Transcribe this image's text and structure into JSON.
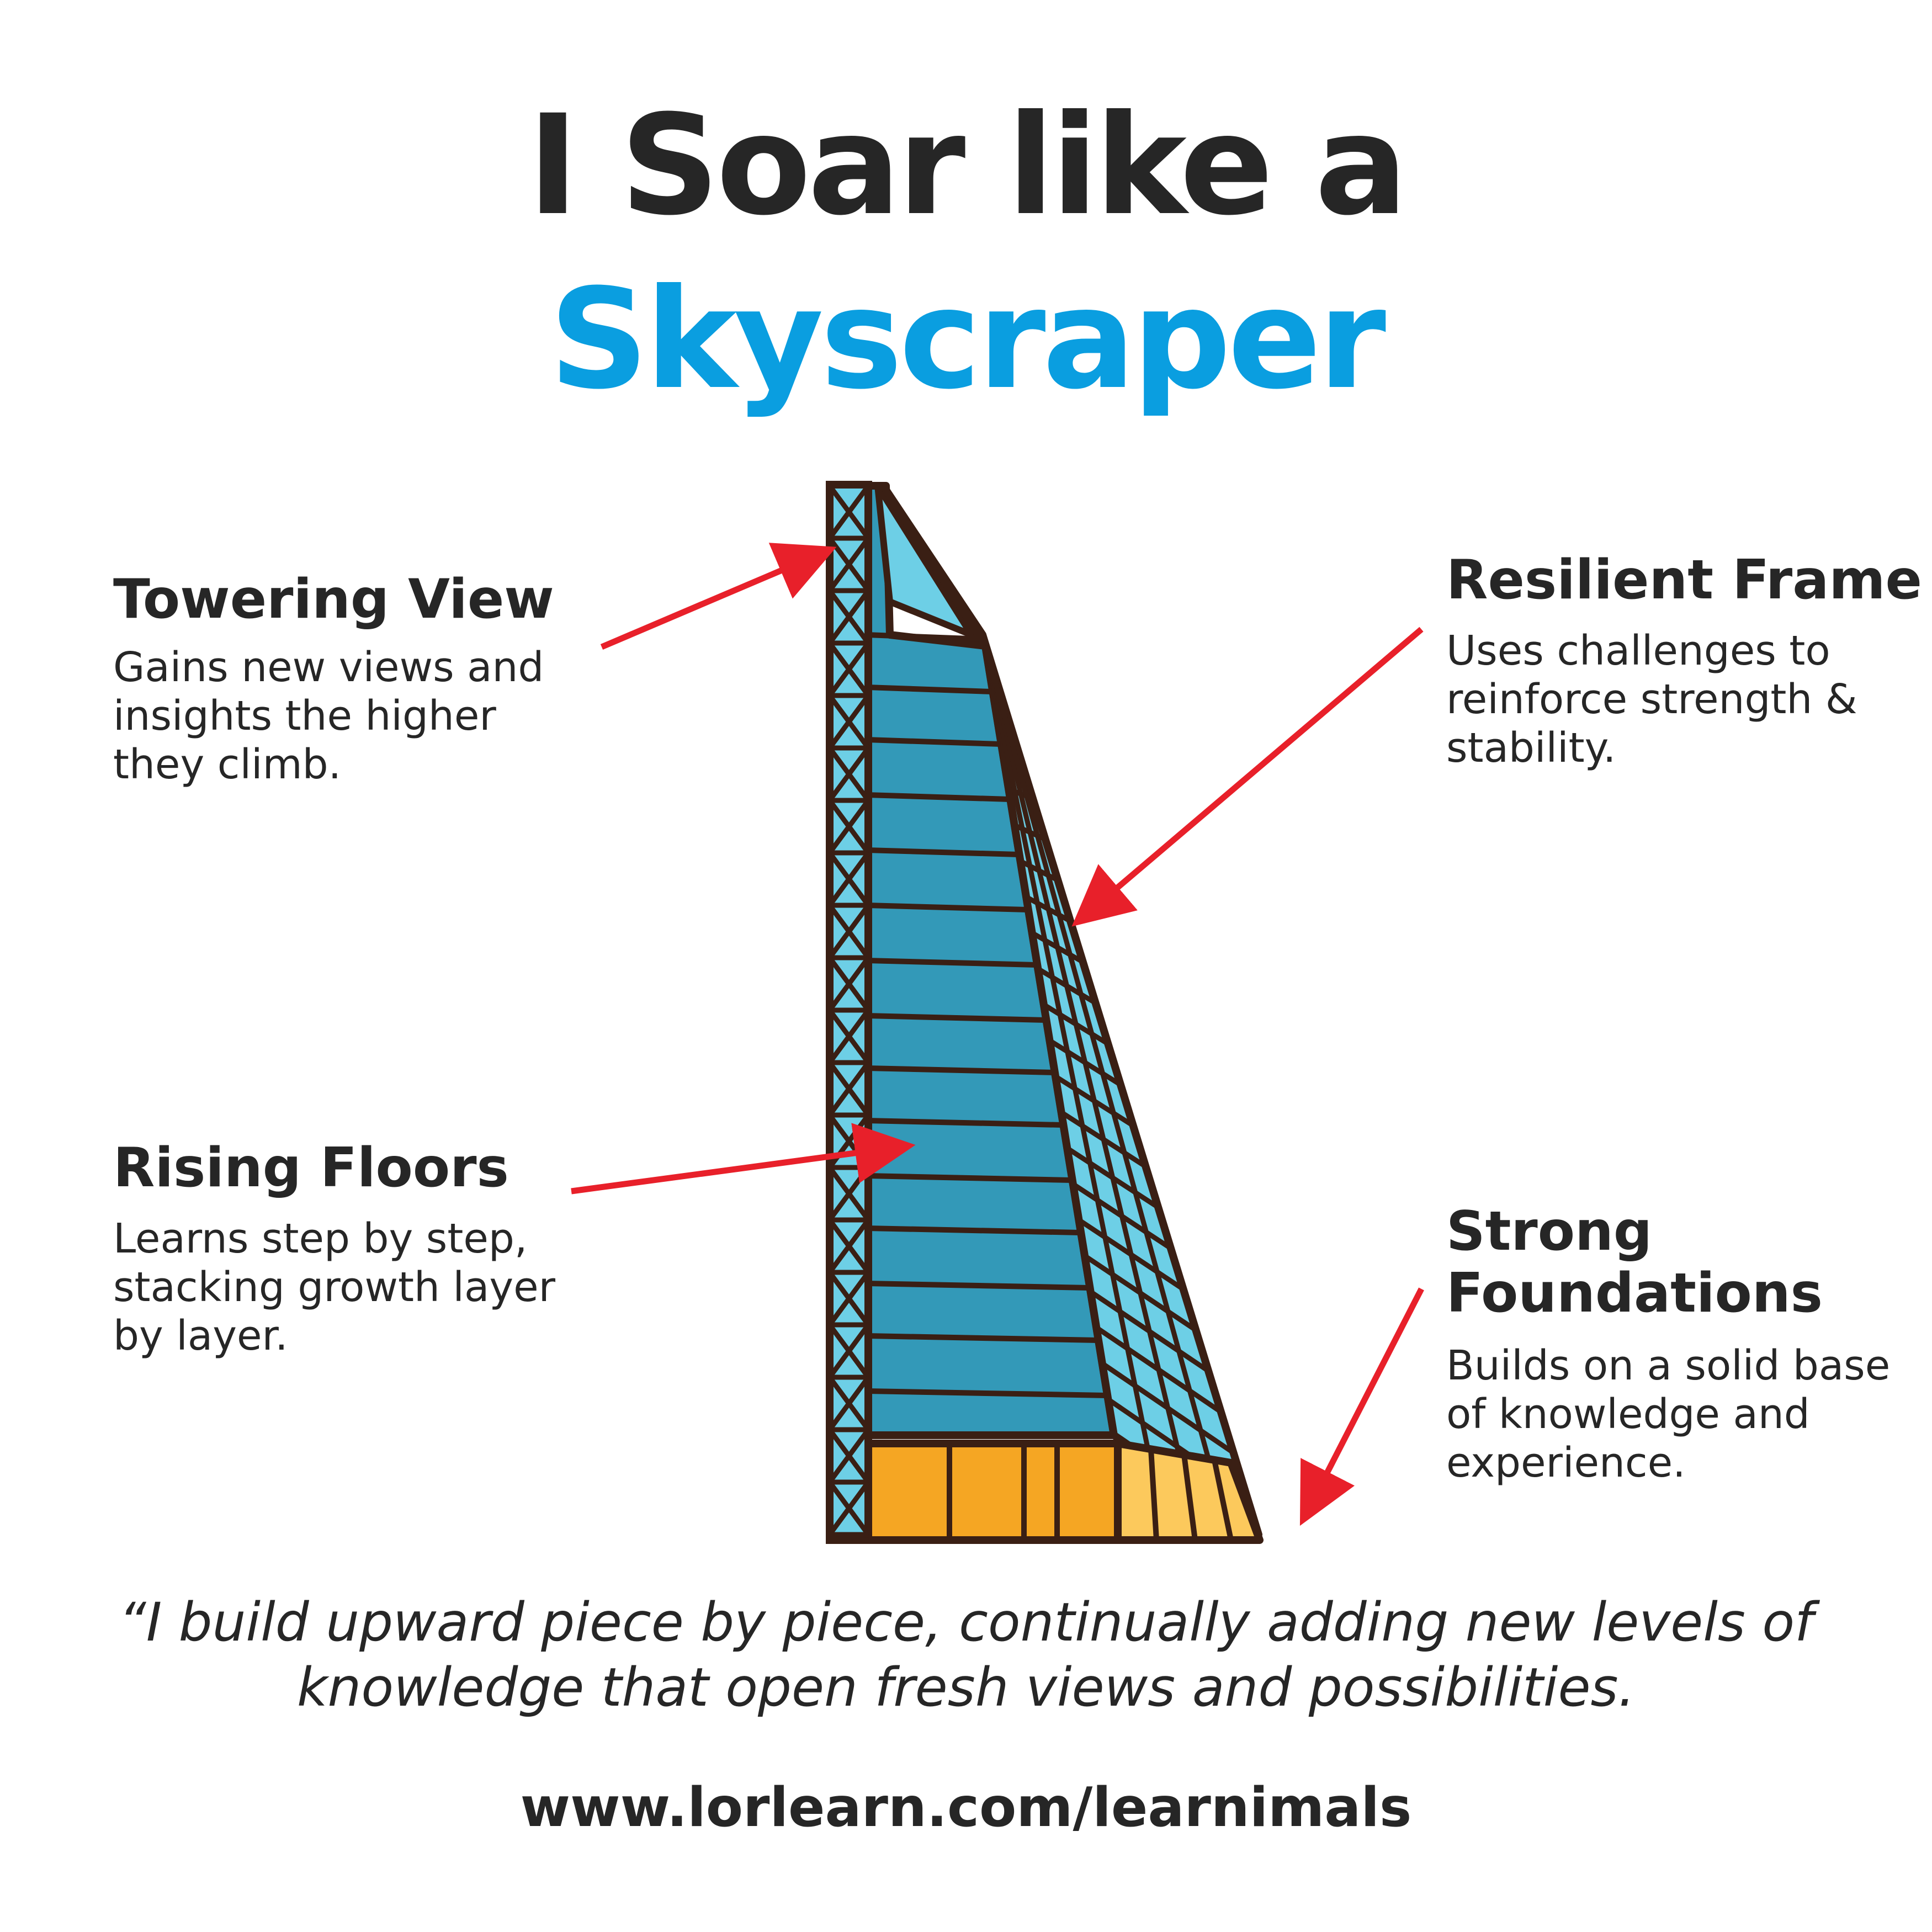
{
  "header": {
    "title_line1": "I Soar like a",
    "title_line2": "Skyscraper",
    "accent_color": "#0a9ee0"
  },
  "labels": {
    "towering_view": {
      "title": "Towering View",
      "body": "Gains new views and insights the higher they climb."
    },
    "resilient_frame": {
      "title": "Resilient Frame",
      "body": "Uses challenges to reinforce strength & stability."
    },
    "rising_floors": {
      "title": "Rising Floors",
      "body": "Learns step by step, stacking growth layer by layer."
    },
    "strong_foundations": {
      "title": "Strong Foundations",
      "body": "Builds on a solid base of knowledge and experience."
    }
  },
  "quote": "“I build upward piece by piece, continually adding new levels of knowledge that open fresh views and possibilities.",
  "footer": {
    "url": "www.lorlearn.com/learnimals"
  },
  "colors": {
    "arrow": "#e8202a",
    "glass_dark": "#3399b8",
    "glass_light": "#6dcfe6",
    "base_orange": "#f5a623",
    "base_light": "#fcc95c",
    "outline": "#3a1f14"
  }
}
